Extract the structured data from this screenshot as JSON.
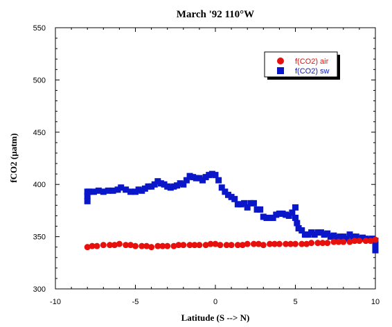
{
  "chart_data": {
    "type": "scatter",
    "title": "March '92 110°W",
    "xlabel": "Latitude (S --> N)",
    "ylabel": "fCO2 (µatm)",
    "xlim": [
      -10,
      10
    ],
    "ylim": [
      300,
      550
    ],
    "xticks": [
      -10,
      -5,
      0,
      5,
      10
    ],
    "yticks": [
      300,
      350,
      400,
      450,
      500,
      550
    ],
    "grid": false,
    "legend_position": "top-right",
    "series": [
      {
        "name": "f(CO2) air",
        "marker": "circle",
        "color": "#e8100c",
        "x": [
          -8.0,
          -7.7,
          -7.4,
          -7.0,
          -6.6,
          -6.3,
          -6.0,
          -5.6,
          -5.3,
          -5.0,
          -4.6,
          -4.3,
          -4.0,
          -3.6,
          -3.3,
          -3.0,
          -2.6,
          -2.3,
          -2.0,
          -1.6,
          -1.3,
          -1.0,
          -0.6,
          -0.3,
          0.0,
          0.3,
          0.7,
          1.0,
          1.4,
          1.7,
          2.0,
          2.4,
          2.7,
          3.0,
          3.4,
          3.7,
          4.0,
          4.4,
          4.7,
          5.0,
          5.4,
          5.7,
          6.0,
          6.4,
          6.7,
          7.0,
          7.4,
          7.7,
          8.0,
          8.4,
          8.7,
          9.0,
          9.4,
          9.7,
          10.0
        ],
        "y": [
          340,
          341,
          341,
          342,
          342,
          342,
          343,
          342,
          342,
          341,
          341,
          341,
          340,
          341,
          341,
          341,
          341,
          342,
          342,
          342,
          342,
          342,
          342,
          343,
          343,
          342,
          342,
          342,
          342,
          342,
          343,
          343,
          343,
          342,
          343,
          343,
          343,
          343,
          343,
          343,
          343,
          343,
          344,
          344,
          344,
          344,
          345,
          345,
          345,
          345,
          346,
          346,
          346,
          346,
          347
        ]
      },
      {
        "name": "f(CO2) sw",
        "marker": "square",
        "color": "#0a17c8",
        "x": [
          -8.0,
          -8.0,
          -8.0,
          -7.9,
          -7.6,
          -7.3,
          -7.0,
          -6.7,
          -6.4,
          -6.1,
          -5.9,
          -5.6,
          -5.3,
          -5.0,
          -4.8,
          -4.6,
          -4.4,
          -4.2,
          -4.0,
          -3.8,
          -3.6,
          -3.4,
          -3.2,
          -3.0,
          -2.8,
          -2.6,
          -2.4,
          -2.2,
          -2.0,
          -1.8,
          -1.6,
          -1.4,
          -1.2,
          -1.0,
          -0.8,
          -0.6,
          -0.4,
          -0.2,
          0.0,
          0.2,
          0.4,
          0.6,
          0.8,
          1.0,
          1.2,
          1.4,
          1.6,
          1.8,
          2.0,
          2.2,
          2.4,
          2.6,
          2.8,
          3.0,
          3.2,
          3.4,
          3.6,
          3.8,
          4.0,
          4.2,
          4.4,
          4.6,
          4.8,
          5.0,
          5.0,
          5.1,
          5.2,
          5.4,
          5.6,
          5.8,
          6.0,
          6.2,
          6.4,
          6.6,
          6.8,
          7.0,
          7.2,
          7.4,
          7.6,
          7.8,
          8.0,
          8.2,
          8.4,
          8.6,
          8.8,
          9.0,
          9.2,
          9.4,
          9.6,
          9.8,
          10.0,
          10.0,
          10.0
        ],
        "y": [
          384,
          389,
          393,
          393,
          393,
          394,
          393,
          394,
          394,
          395,
          397,
          395,
          393,
          393,
          395,
          394,
          396,
          398,
          398,
          400,
          403,
          401,
          400,
          398,
          397,
          398,
          399,
          401,
          400,
          404,
          408,
          407,
          406,
          406,
          404,
          407,
          409,
          410,
          409,
          404,
          397,
          393,
          390,
          388,
          386,
          381,
          381,
          382,
          378,
          382,
          382,
          376,
          376,
          369,
          368,
          368,
          368,
          371,
          372,
          372,
          371,
          370,
          373,
          378,
          368,
          363,
          358,
          356,
          352,
          352,
          354,
          352,
          354,
          354,
          352,
          353,
          350,
          351,
          349,
          350,
          350,
          348,
          352,
          350,
          350,
          348,
          349,
          348,
          347,
          348,
          346,
          341,
          337
        ]
      }
    ]
  }
}
